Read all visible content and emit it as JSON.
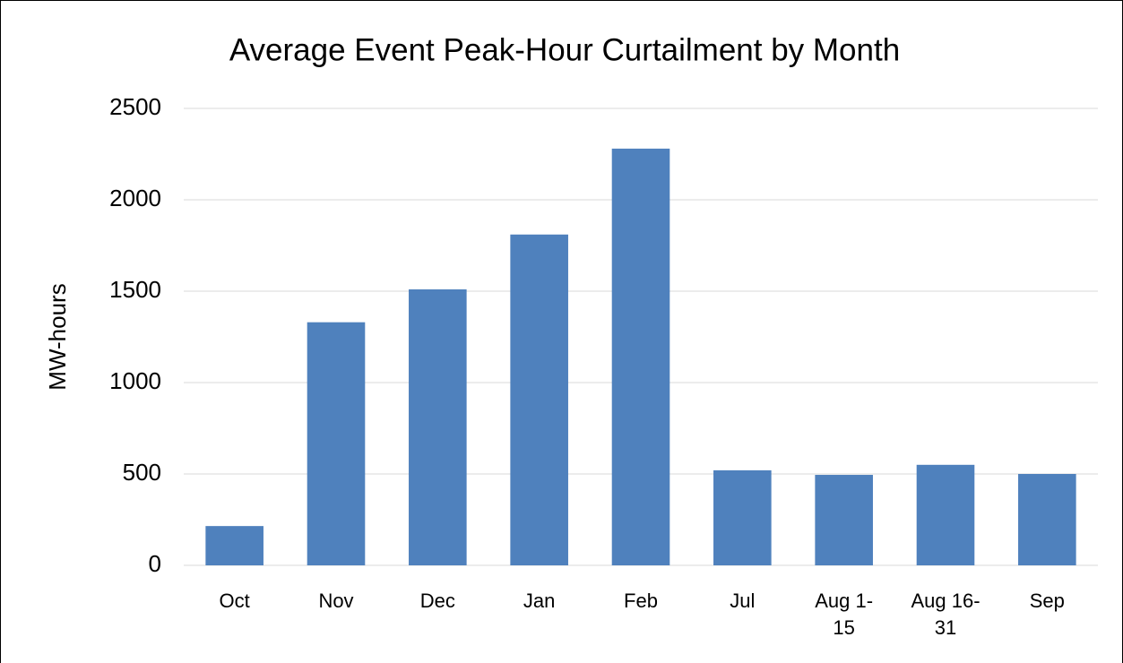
{
  "chart_data": {
    "type": "bar",
    "title": "Average Event Peak-Hour Curtailment by Month",
    "y_label": "MW-hours",
    "categories": [
      "Oct",
      "Nov",
      "Dec",
      "Jan",
      "Feb",
      "Jul",
      "Aug 1-15",
      "Aug 16-31",
      "Sep"
    ],
    "values": [
      215,
      1330,
      1510,
      1810,
      2280,
      520,
      495,
      550,
      500
    ],
    "color": "#4f81bd",
    "ylim": [
      0,
      2500
    ],
    "yticks": [
      0,
      500,
      1000,
      1500,
      2000,
      2500
    ],
    "grid": true
  }
}
